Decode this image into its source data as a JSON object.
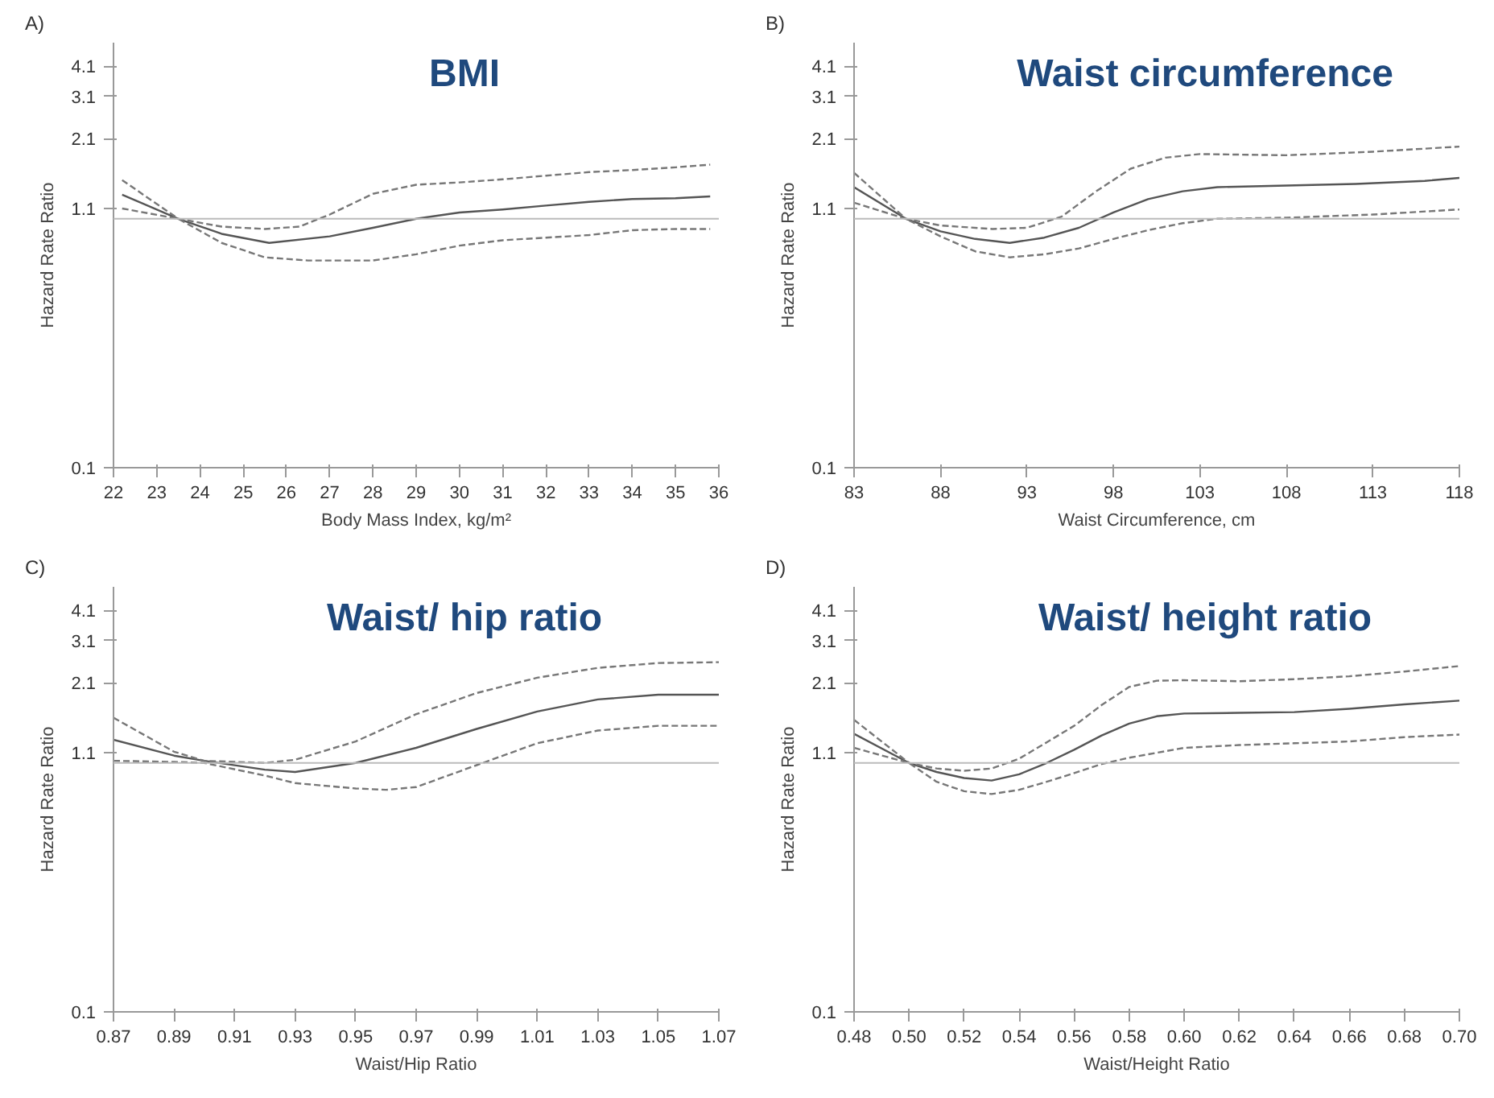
{
  "chart_data": [
    {
      "type": "line",
      "title": "BMI",
      "xlabel": "Body Mass Index, kg/m²",
      "ylabel": "Hazard Rate Ratio",
      "annotations": [
        "A)"
      ],
      "log": "y",
      "grid": false,
      "xlim": [
        22,
        36
      ],
      "xticks": [
        22,
        23,
        24,
        25,
        26,
        27,
        28,
        29,
        30,
        31,
        32,
        33,
        34,
        35,
        36
      ],
      "ylim": [
        0.1,
        5.1
      ],
      "yticks": [
        0.1,
        1.1,
        2.1,
        3.1,
        4.1
      ],
      "ref_lines": [
        {
          "axis": "y",
          "value": 1,
          "label": null,
          "color": "#bbbbbb"
        }
      ],
      "series": [
        {
          "color": "#555555",
          "line_style": "solid",
          "x": [
            22.2,
            23.5,
            24.5,
            25.6,
            27,
            28,
            29,
            30,
            31,
            32,
            33,
            34,
            35,
            35.8
          ],
          "values": [
            1.25,
            1.0,
            0.87,
            0.8,
            0.85,
            0.92,
            1.0,
            1.06,
            1.09,
            1.13,
            1.17,
            1.2,
            1.21,
            1.23
          ]
        },
        {
          "color": "#777777",
          "line_style": "dashed",
          "x": [
            22.2,
            23.5,
            24.5,
            25.5,
            26.3,
            27,
            28,
            29,
            30,
            31,
            32,
            33,
            34,
            35,
            35.8
          ],
          "values": [
            1.43,
            1.0,
            0.93,
            0.91,
            0.93,
            1.04,
            1.26,
            1.37,
            1.4,
            1.44,
            1.49,
            1.54,
            1.57,
            1.61,
            1.65
          ]
        },
        {
          "color": "#777777",
          "line_style": "dashed",
          "x": [
            22.2,
            23.5,
            24.5,
            25.5,
            26.5,
            28,
            29,
            30,
            31,
            32,
            33,
            34,
            35,
            35.8
          ],
          "values": [
            1.1,
            1.0,
            0.8,
            0.7,
            0.68,
            0.68,
            0.72,
            0.78,
            0.82,
            0.84,
            0.86,
            0.9,
            0.91,
            0.91
          ]
        }
      ]
    },
    {
      "type": "line",
      "title": "Waist circumference",
      "xlabel": "Waist Circumference, cm",
      "ylabel": "Hazard Rate Ratio",
      "annotations": [
        "B)"
      ],
      "log": "y",
      "grid": false,
      "xlim": [
        83,
        118
      ],
      "xticks": [
        83,
        88,
        93,
        98,
        103,
        108,
        113,
        118
      ],
      "ylim": [
        0.1,
        5.1
      ],
      "yticks": [
        0.1,
        1.1,
        2.1,
        3.1,
        4.1
      ],
      "ref_lines": [
        {
          "axis": "y",
          "value": 1,
          "label": null,
          "color": "#bbbbbb"
        }
      ],
      "series": [
        {
          "color": "#555555",
          "line_style": "solid",
          "x": [
            83,
            86,
            88,
            90,
            92,
            94,
            96,
            98,
            100,
            102,
            104,
            108,
            112,
            116,
            118
          ],
          "values": [
            1.34,
            1.0,
            0.89,
            0.83,
            0.8,
            0.84,
            0.92,
            1.06,
            1.2,
            1.29,
            1.34,
            1.36,
            1.38,
            1.42,
            1.46
          ]
        },
        {
          "color": "#777777",
          "line_style": "dashed",
          "x": [
            83,
            86,
            88,
            91,
            93,
            95,
            97,
            99,
            101,
            103,
            108,
            113,
            118
          ],
          "values": [
            1.53,
            1.0,
            0.94,
            0.91,
            0.92,
            1.02,
            1.29,
            1.59,
            1.76,
            1.82,
            1.8,
            1.86,
            1.95
          ]
        },
        {
          "color": "#777777",
          "line_style": "dashed",
          "x": [
            83,
            86,
            88,
            90,
            92,
            94,
            96,
            98,
            100,
            102,
            104,
            108,
            113,
            118
          ],
          "values": [
            1.16,
            1.0,
            0.85,
            0.74,
            0.7,
            0.72,
            0.76,
            0.83,
            0.9,
            0.96,
            1.0,
            1.01,
            1.04,
            1.09
          ]
        }
      ]
    },
    {
      "type": "line",
      "title": "Waist/ hip ratio",
      "xlabel": "Waist/Hip Ratio",
      "ylabel": "Hazard Rate Ratio",
      "annotations": [
        "C)"
      ],
      "log": "y",
      "grid": false,
      "xlim": [
        0.87,
        1.07
      ],
      "xticks": [
        {
          "value": 0.87,
          "label": "0.87"
        },
        {
          "value": 0.89,
          "label": "0.89"
        },
        {
          "value": 0.91,
          "label": "0.91"
        },
        {
          "value": 0.93,
          "label": "0.93"
        },
        {
          "value": 0.95,
          "label": "0.95"
        },
        {
          "value": 0.97,
          "label": "0.97"
        },
        {
          "value": 0.99,
          "label": "0.99"
        },
        {
          "value": 1.01,
          "label": "1.01"
        },
        {
          "value": 1.03,
          "label": "1.03"
        },
        {
          "value": 1.05,
          "label": "1.05"
        },
        {
          "value": 1.07,
          "label": "1.07"
        }
      ],
      "ylim": [
        0.1,
        5.1
      ],
      "yticks": [
        0.1,
        1.1,
        2.1,
        3.1,
        4.1
      ],
      "ref_lines": [
        {
          "axis": "y",
          "value": 1,
          "label": null,
          "color": "#bbbbbb"
        }
      ],
      "series": [
        {
          "color": "#555555",
          "line_style": "solid",
          "x": [
            0.87,
            0.89,
            0.9,
            0.92,
            0.93,
            0.95,
            0.97,
            0.99,
            1.01,
            1.03,
            1.05,
            1.07
          ],
          "values": [
            1.24,
            1.07,
            1.02,
            0.94,
            0.92,
            1.0,
            1.15,
            1.37,
            1.61,
            1.8,
            1.88,
            1.88
          ]
        },
        {
          "color": "#777777",
          "line_style": "dashed",
          "x": [
            0.87,
            0.89,
            0.9,
            0.92,
            0.93,
            0.95,
            0.97,
            0.99,
            1.01,
            1.03,
            1.05,
            1.07
          ],
          "values": [
            1.52,
            1.11,
            1.02,
            1.0,
            1.03,
            1.22,
            1.57,
            1.91,
            2.2,
            2.41,
            2.52,
            2.54
          ]
        },
        {
          "color": "#777777",
          "line_style": "dashed",
          "x": [
            0.87,
            0.89,
            0.9,
            0.92,
            0.93,
            0.95,
            0.96,
            0.97,
            0.99,
            1.01,
            1.03,
            1.05,
            1.07
          ],
          "values": [
            1.02,
            1.01,
            1.0,
            0.89,
            0.83,
            0.79,
            0.78,
            0.8,
            0.98,
            1.2,
            1.35,
            1.41,
            1.41
          ]
        }
      ]
    },
    {
      "type": "line",
      "title": "Waist/ height ratio",
      "xlabel": "Waist/Height Ratio",
      "ylabel": "Hazard Rate Ratio",
      "annotations": [
        "D)"
      ],
      "log": "y",
      "grid": false,
      "xlim": [
        0.48,
        0.7
      ],
      "xticks": [
        {
          "value": 0.48,
          "label": "0.48"
        },
        {
          "value": 0.5,
          "label": "0.50"
        },
        {
          "value": 0.52,
          "label": "0.52"
        },
        {
          "value": 0.54,
          "label": "0.54"
        },
        {
          "value": 0.56,
          "label": "0.56"
        },
        {
          "value": 0.58,
          "label": "0.58"
        },
        {
          "value": 0.6,
          "label": "0.60"
        },
        {
          "value": 0.62,
          "label": "0.62"
        },
        {
          "value": 0.64,
          "label": "0.64"
        },
        {
          "value": 0.66,
          "label": "0.66"
        },
        {
          "value": 0.68,
          "label": "0.68"
        },
        {
          "value": 0.7,
          "label": "0.70"
        }
      ],
      "ylim": [
        0.1,
        5.1
      ],
      "yticks": [
        0.1,
        1.1,
        2.1,
        3.1,
        4.1
      ],
      "ref_lines": [
        {
          "axis": "y",
          "value": 1,
          "label": null,
          "color": "#bbbbbb"
        }
      ],
      "series": [
        {
          "color": "#555555",
          "line_style": "solid",
          "x": [
            0.48,
            0.5,
            0.51,
            0.52,
            0.53,
            0.54,
            0.55,
            0.56,
            0.57,
            0.58,
            0.59,
            0.6,
            0.62,
            0.64,
            0.66,
            0.68,
            0.7
          ],
          "values": [
            1.31,
            1.0,
            0.92,
            0.87,
            0.85,
            0.9,
            1.0,
            1.13,
            1.29,
            1.44,
            1.54,
            1.58,
            1.59,
            1.6,
            1.65,
            1.72,
            1.78
          ]
        },
        {
          "color": "#777777",
          "line_style": "dashed",
          "x": [
            0.48,
            0.5,
            0.51,
            0.52,
            0.53,
            0.54,
            0.55,
            0.56,
            0.57,
            0.58,
            0.59,
            0.6,
            0.62,
            0.64,
            0.66,
            0.68,
            0.7
          ],
          "values": [
            1.49,
            1.0,
            0.95,
            0.93,
            0.95,
            1.04,
            1.21,
            1.41,
            1.71,
            2.02,
            2.14,
            2.15,
            2.13,
            2.17,
            2.23,
            2.33,
            2.45
          ]
        },
        {
          "color": "#777777",
          "line_style": "dashed",
          "x": [
            0.48,
            0.5,
            0.51,
            0.52,
            0.53,
            0.54,
            0.55,
            0.56,
            0.57,
            0.58,
            0.6,
            0.62,
            0.64,
            0.66,
            0.68,
            0.7
          ],
          "values": [
            1.15,
            1.0,
            0.84,
            0.77,
            0.75,
            0.78,
            0.84,
            0.91,
            0.99,
            1.05,
            1.15,
            1.18,
            1.2,
            1.22,
            1.27,
            1.3
          ]
        }
      ]
    }
  ]
}
